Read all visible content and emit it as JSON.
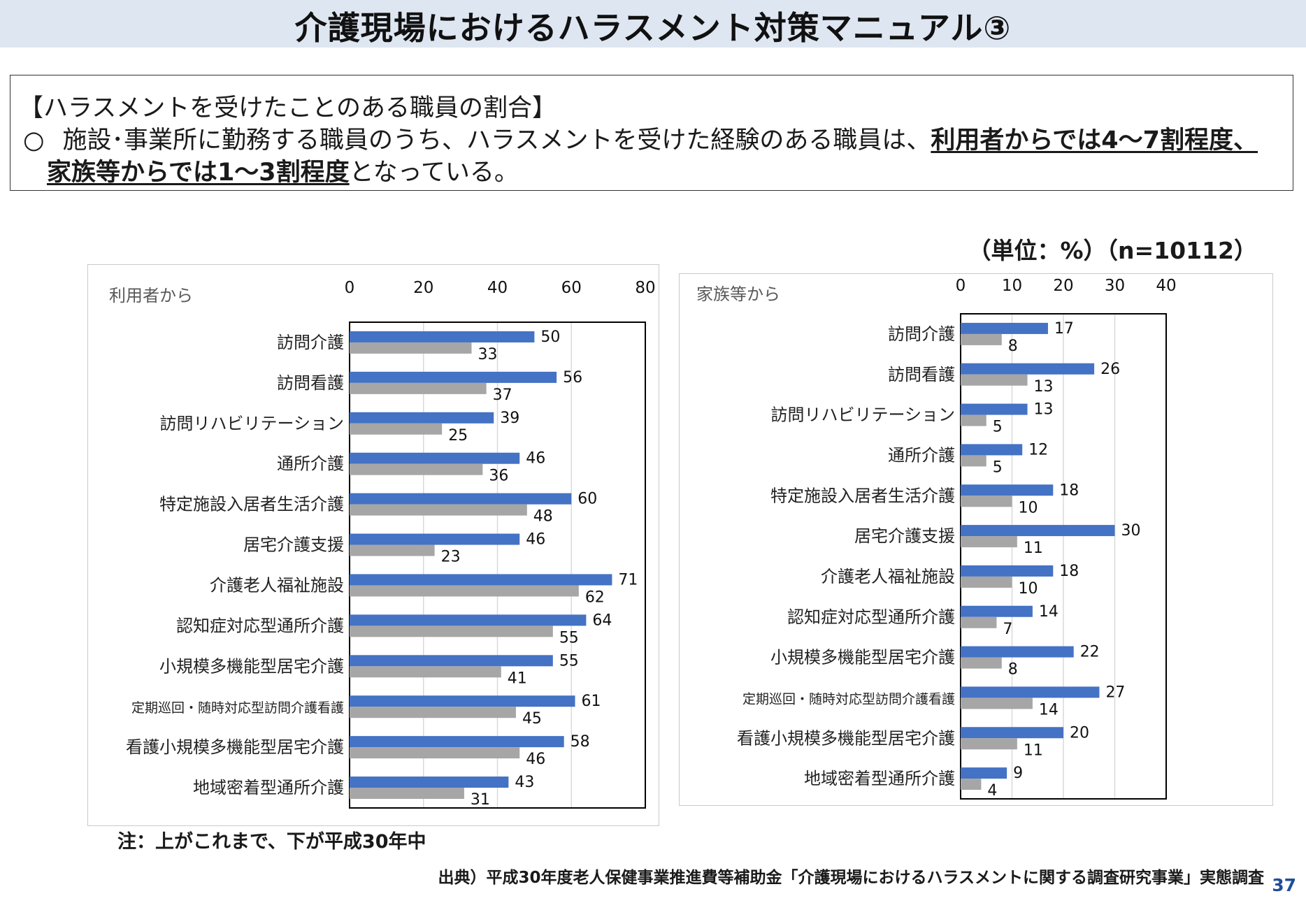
{
  "page": {
    "title": "介護現場におけるハラスメント対策マニュアル③",
    "summary": {
      "heading": "【ハラスメントを受けたことのある職員の割合】",
      "bullet": "○",
      "line1_text": "施設･事業所に勤務する職員のうち、ハラスメントを受けた経験のある職員は、",
      "line1_emphasis": "利用者からでは4～7割程度、",
      "line2_emphasis": "家族等からでは1～3割程度",
      "line2_text": "となっている。"
    },
    "unit_note": "（単位：%）（n=10112）",
    "footnote": "注：上がこれまで、下が平成30年中",
    "source": "出典）平成30年度老人保健事業推進費等補助金「介護現場におけるハラスメントに関する調査研究事業」実態調査",
    "page_number": "37"
  },
  "colors": {
    "blue": "#4472c4",
    "gray": "#a6a6a6",
    "grid": "#d9d9d9",
    "axis": "#000000",
    "label": "#595959"
  },
  "chart_data": [
    {
      "type": "bar",
      "orientation": "horizontal",
      "title": "利用者から",
      "xlim": [
        0,
        80
      ],
      "ticks": [
        0,
        20,
        40,
        60,
        80
      ],
      "grid": true,
      "categories": [
        "訪問介護",
        "訪問看護",
        "訪問リハビリテーション",
        "通所介護",
        "特定施設入居者生活介護",
        "居宅介護支援",
        "介護老人福祉施設",
        "認知症対応型通所介護",
        "小規模多機能型居宅介護",
        "定期巡回・随時対応型訪問介護看護",
        "看護小規模多機能型居宅介護",
        "地域密着型通所介護"
      ],
      "series": [
        {
          "values": [
            50,
            56,
            39,
            46,
            60,
            46,
            71,
            64,
            55,
            61,
            58,
            43
          ]
        },
        {
          "values": [
            33,
            37,
            25,
            36,
            48,
            23,
            62,
            55,
            41,
            45,
            46,
            31
          ]
        }
      ]
    },
    {
      "type": "bar",
      "orientation": "horizontal",
      "title": "家族等から",
      "xlim": [
        0,
        40
      ],
      "ticks": [
        0,
        10,
        20,
        30,
        40
      ],
      "grid": true,
      "categories": [
        "訪問介護",
        "訪問看護",
        "訪問リハビリテーション",
        "通所介護",
        "特定施設入居者生活介護",
        "居宅介護支援",
        "介護老人福祉施設",
        "認知症対応型通所介護",
        "小規模多機能型居宅介護",
        "定期巡回・随時対応型訪問介護看護",
        "看護小規模多機能型居宅介護",
        "地域密着型通所介護"
      ],
      "series": [
        {
          "values": [
            17,
            26,
            13,
            12,
            18,
            30,
            18,
            14,
            22,
            27,
            20,
            9
          ]
        },
        {
          "values": [
            8,
            13,
            5,
            5,
            10,
            11,
            10,
            7,
            8,
            14,
            11,
            4
          ]
        }
      ]
    }
  ]
}
